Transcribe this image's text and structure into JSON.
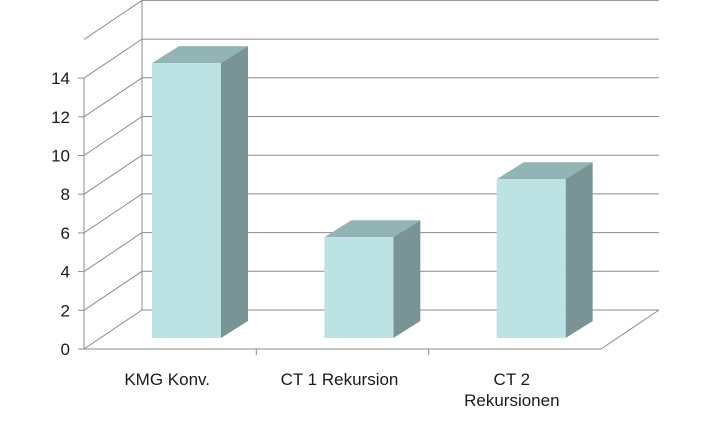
{
  "chart_data": {
    "type": "bar",
    "style": "3d-column",
    "categories": [
      "KMG Konv.",
      "CT 1 Rekursion",
      "CT 2 Rekursionen"
    ],
    "category_lines": [
      [
        "KMG Konv."
      ],
      [
        "CT 1 Rekursion"
      ],
      [
        "CT 2",
        "Rekursionen"
      ]
    ],
    "values": [
      14,
      5,
      8
    ],
    "title": "",
    "xlabel": "",
    "ylabel": "",
    "ylim": [
      0,
      16
    ],
    "yticks": [
      0,
      2,
      4,
      6,
      8,
      10,
      12,
      14
    ],
    "grid": true,
    "legend": "none",
    "colors": {
      "bar_front": "#bde2e3",
      "bar_top": "#93b4b5",
      "bar_side": "#7a9394",
      "grid": "#8c8c8c",
      "text": "#1a1a1a"
    }
  }
}
